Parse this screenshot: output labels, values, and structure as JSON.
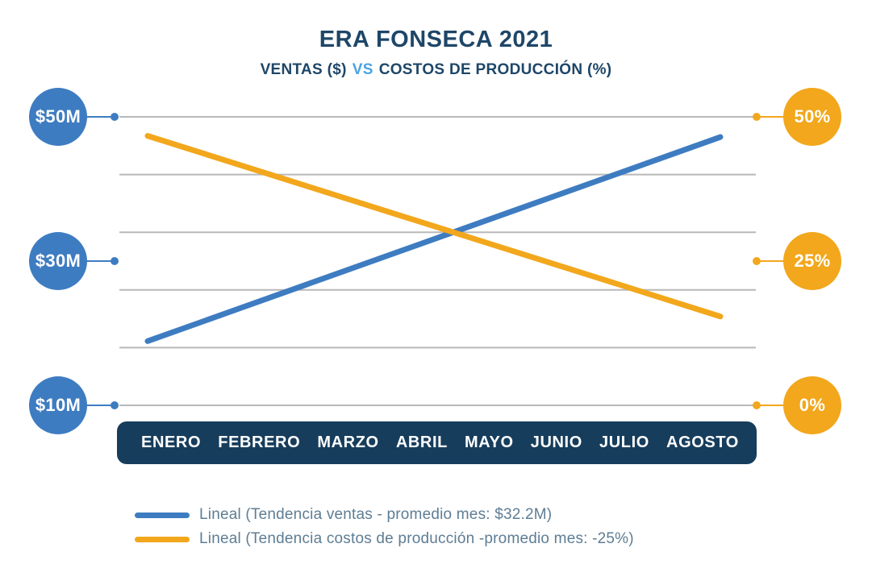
{
  "header": {
    "title": "ERA FONSECA 2021",
    "subtitle": {
      "left": "VENTAS ($)",
      "vs": "VS",
      "right": "COSTOS DE PRODUCCIÓN (%)"
    }
  },
  "colors": {
    "navy": "#1e4668",
    "bar_navy": "#173d5c",
    "blue": "#3e7cc1",
    "orange": "#f2a71c",
    "grid": "#b8b8b8",
    "light_blue": "#4aa3e3",
    "legend_text": "#5e7d94"
  },
  "chart_data": {
    "type": "line",
    "title": "ERA FONSECA 2021",
    "subtitle": "VENTAS ($) VS COSTOS DE PRODUCCIÓN (%)",
    "categories": [
      "ENERO",
      "FEBRERO",
      "MARZO",
      "ABRIL",
      "MAYO",
      "JUNIO",
      "JULIO",
      "AGOSTO"
    ],
    "grid": true,
    "gridline_count": 6,
    "legend_position": "bottom",
    "left_axis": {
      "labels": [
        "$50M",
        "$30M",
        "$10M"
      ],
      "values": [
        50,
        30,
        10
      ],
      "min": 10,
      "max": 50,
      "unit": "$M"
    },
    "right_axis": {
      "labels": [
        "50%",
        "25%",
        "0%"
      ],
      "values": [
        50,
        25,
        0
      ],
      "min": 0,
      "max": 50,
      "unit": "%"
    },
    "series": [
      {
        "name": "Lineal (Tendencia ventas - promedio mes: $32.2M)",
        "axis": "left",
        "color": "#3e7cc1",
        "trend_start": 18.9,
        "trend_end": 47.2
      },
      {
        "name": "Lineal (Tendencia costos de producción -promedio mes: -25%)",
        "axis": "right",
        "color": "#f2a71c",
        "trend_start": 46.7,
        "trend_end": 15.4
      }
    ]
  }
}
